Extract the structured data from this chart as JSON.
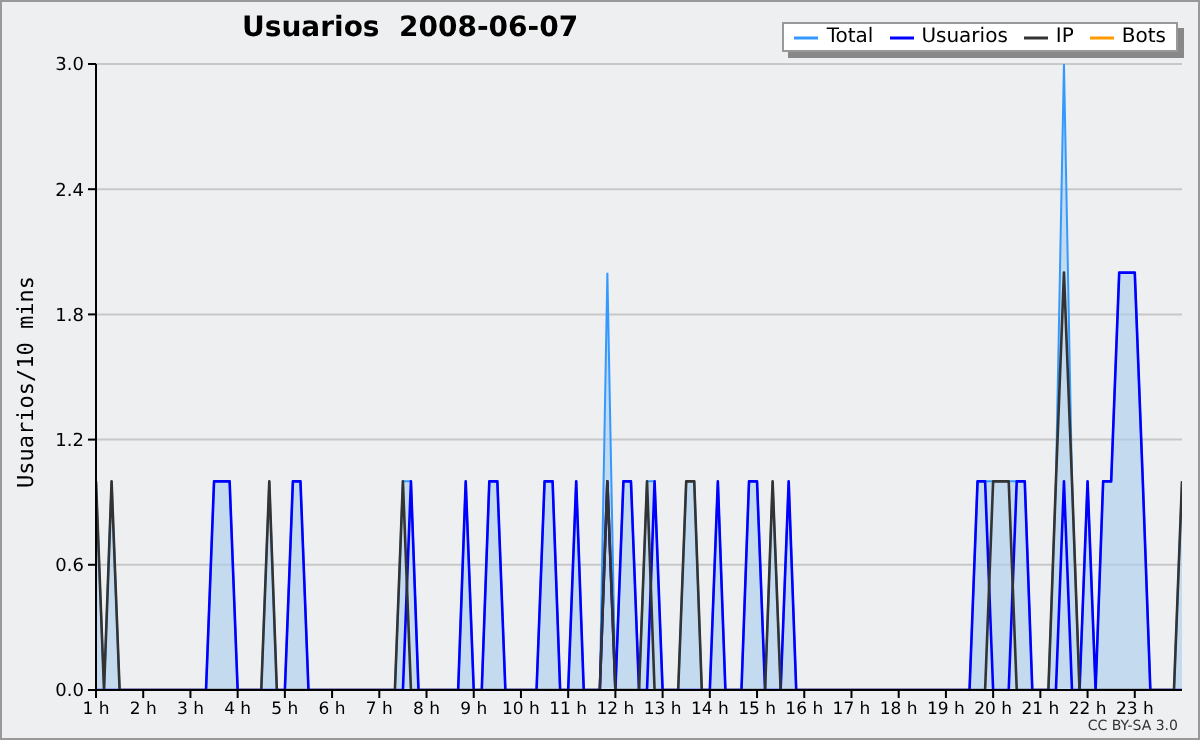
{
  "chart_data": {
    "type": "line",
    "title": "Usuarios  2008-06-07",
    "ylabel": "Usuarios/10 mins",
    "annotations": [
      "CC BY-SA 3.0"
    ],
    "xlim": [
      1,
      24
    ],
    "ylim": [
      0,
      3
    ],
    "xticks": [
      {
        "value": 1,
        "label": "1 h"
      },
      {
        "value": 2,
        "label": "2 h"
      },
      {
        "value": 3,
        "label": "3 h"
      },
      {
        "value": 4,
        "label": "4 h"
      },
      {
        "value": 5,
        "label": "5 h"
      },
      {
        "value": 6,
        "label": "6 h"
      },
      {
        "value": 7,
        "label": "7 h"
      },
      {
        "value": 8,
        "label": "8 h"
      },
      {
        "value": 9,
        "label": "9 h"
      },
      {
        "value": 10,
        "label": "10 h"
      },
      {
        "value": 11,
        "label": "11 h"
      },
      {
        "value": 12,
        "label": "12 h"
      },
      {
        "value": 13,
        "label": "13 h"
      },
      {
        "value": 14,
        "label": "14 h"
      },
      {
        "value": 15,
        "label": "15 h"
      },
      {
        "value": 16,
        "label": "16 h"
      },
      {
        "value": 17,
        "label": "17 h"
      },
      {
        "value": 18,
        "label": "18 h"
      },
      {
        "value": 19,
        "label": "19 h"
      },
      {
        "value": 20,
        "label": "20 h"
      },
      {
        "value": 21,
        "label": "21 h"
      },
      {
        "value": 22,
        "label": "22 h"
      },
      {
        "value": 23,
        "label": "23 h"
      }
    ],
    "yticks": [
      {
        "value": 0,
        "label": "0.0"
      },
      {
        "value": 0.6,
        "label": "0.6"
      },
      {
        "value": 1.2,
        "label": "1.2"
      },
      {
        "value": 1.8,
        "label": "1.8"
      },
      {
        "value": 2.4,
        "label": "2.4"
      },
      {
        "value": 3,
        "label": "3.0"
      }
    ],
    "grid": "y",
    "legend": "top right",
    "marker": "none",
    "line_style": "solid",
    "series": [
      {
        "name": "Total",
        "type": "area",
        "color": "#3399ff",
        "x": [
          1,
          1.17,
          1.33,
          1.5,
          3.33,
          3.5,
          3.83,
          4,
          4.5,
          4.67,
          4.83,
          5,
          5.17,
          5.33,
          5.5,
          7.33,
          7.5,
          7.67,
          7.83,
          8.67,
          8.83,
          9,
          9.17,
          9.33,
          9.5,
          9.67,
          10.33,
          10.5,
          10.67,
          10.83,
          11,
          11.17,
          11.33,
          11.67,
          11.83,
          12,
          12.17,
          12.33,
          12.5,
          12.67,
          12.83,
          13,
          13.33,
          13.5,
          13.67,
          13.83,
          14,
          14.17,
          14.33,
          14.67,
          14.83,
          15,
          15.17,
          15.33,
          15.5,
          15.67,
          15.83,
          19.5,
          19.67,
          20.67,
          20.83,
          21.17,
          21.33,
          21.5,
          21.67,
          21.83,
          22,
          22.17,
          22.33,
          22.5,
          22.67,
          23,
          23.17,
          23.33,
          23.83,
          24
        ],
        "values": [
          1,
          0,
          1,
          0,
          0,
          1,
          1,
          0,
          0,
          1,
          0,
          0,
          1,
          1,
          0,
          0,
          1,
          1,
          0,
          0,
          1,
          0,
          0,
          1,
          1,
          0,
          0,
          1,
          1,
          0,
          0,
          1,
          0,
          0,
          2,
          0,
          1,
          1,
          0,
          1,
          1,
          0,
          0,
          1,
          1,
          0,
          0,
          1,
          0,
          0,
          1,
          1,
          0,
          1,
          0,
          1,
          0,
          0,
          1,
          1,
          0,
          0,
          1,
          3,
          1,
          0,
          1,
          0,
          1,
          1,
          2,
          2,
          1,
          0,
          0,
          1
        ]
      },
      {
        "name": "Usuarios",
        "type": "line",
        "color": "#0000ff",
        "x": [
          1,
          3.33,
          3.5,
          3.83,
          4,
          5,
          5.17,
          5.33,
          5.5,
          7.5,
          7.67,
          7.83,
          8.67,
          8.83,
          9,
          9.17,
          9.33,
          9.5,
          9.67,
          10.33,
          10.5,
          10.67,
          10.83,
          11,
          11.17,
          11.33,
          11.67,
          11.83,
          12,
          12.17,
          12.33,
          12.5,
          12.67,
          12.83,
          13,
          14,
          14.17,
          14.33,
          14.67,
          14.83,
          15,
          15.17,
          15.5,
          15.67,
          15.83,
          19.5,
          19.67,
          19.83,
          20,
          20.33,
          20.5,
          20.67,
          20.83,
          21.33,
          21.5,
          21.67,
          21.83,
          22,
          22.17,
          22.33,
          22.5,
          22.67,
          23,
          23.17,
          23.33,
          24
        ],
        "values": [
          0,
          0,
          1,
          1,
          0,
          0,
          1,
          1,
          0,
          0,
          1,
          0,
          0,
          1,
          0,
          0,
          1,
          1,
          0,
          0,
          1,
          1,
          0,
          0,
          1,
          0,
          0,
          1,
          0,
          1,
          1,
          0,
          0,
          1,
          0,
          0,
          1,
          0,
          0,
          1,
          1,
          0,
          0,
          1,
          0,
          0,
          1,
          1,
          0,
          0,
          1,
          1,
          0,
          0,
          1,
          0,
          0,
          1,
          0,
          1,
          1,
          2,
          2,
          1,
          0,
          0
        ]
      },
      {
        "name": "IP",
        "type": "line",
        "color": "#333333",
        "x": [
          1,
          1.17,
          1.33,
          1.5,
          4.5,
          4.67,
          4.83,
          7.33,
          7.5,
          7.67,
          11.67,
          11.83,
          12,
          12.5,
          12.67,
          12.83,
          13.33,
          13.5,
          13.67,
          13.83,
          15.17,
          15.33,
          15.5,
          19.83,
          20,
          20.33,
          20.5,
          21.17,
          21.33,
          21.5,
          21.67,
          21.83,
          23.83,
          24
        ],
        "values": [
          1,
          0,
          1,
          0,
          0,
          1,
          0,
          0,
          1,
          0,
          0,
          1,
          0,
          0,
          1,
          0,
          0,
          1,
          1,
          0,
          0,
          1,
          0,
          0,
          1,
          1,
          0,
          0,
          1,
          2,
          1,
          0,
          0,
          1
        ]
      },
      {
        "name": "Bots",
        "type": "line",
        "color": "#ff9900"
      }
    ]
  }
}
